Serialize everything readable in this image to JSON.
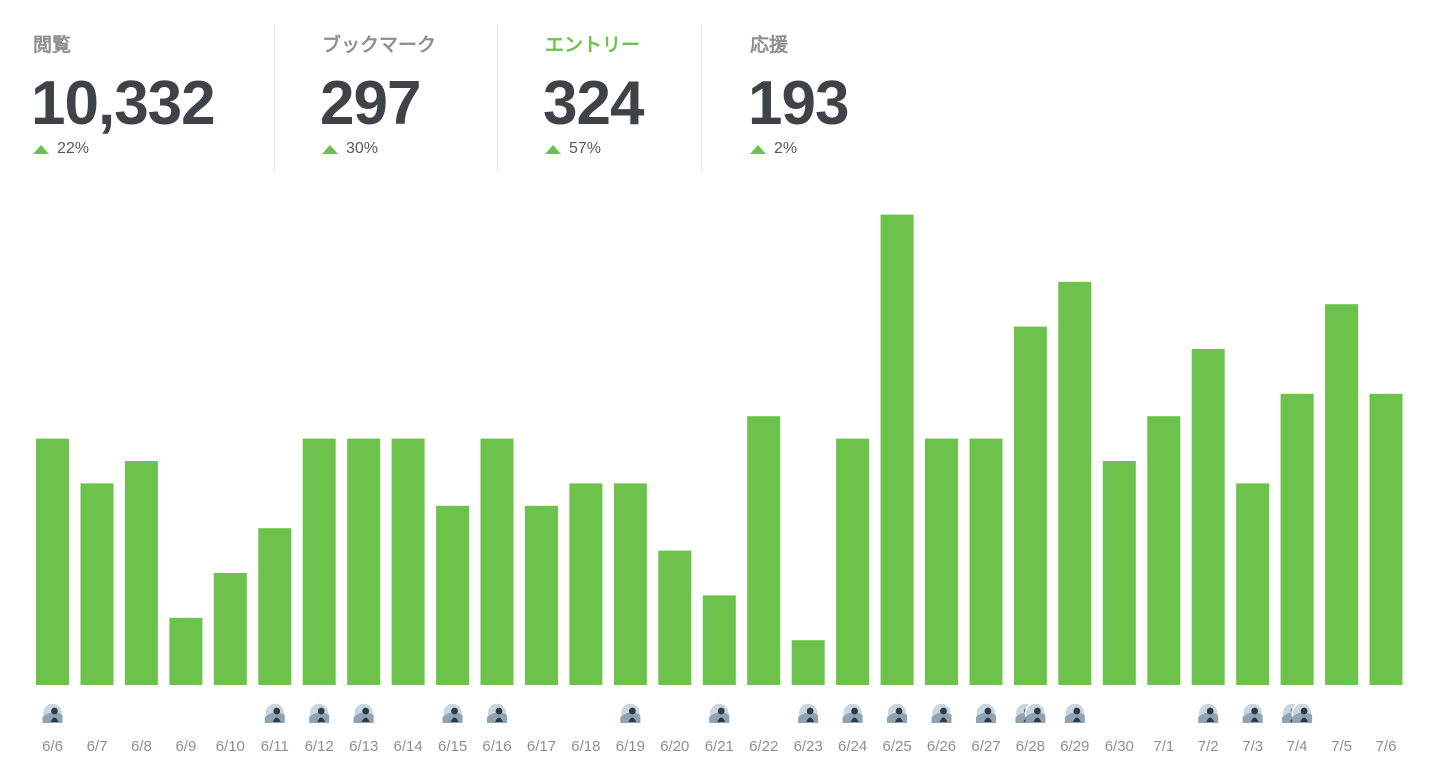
{
  "stats": [
    {
      "label": "閲覧",
      "value": "10,332",
      "change": "22%",
      "trend": "up",
      "active": false
    },
    {
      "label": "ブックマーク",
      "value": "297",
      "change": "30%",
      "trend": "up",
      "active": false
    },
    {
      "label": "エントリー",
      "value": "324",
      "change": "57%",
      "trend": "up",
      "active": true
    },
    {
      "label": "応援",
      "value": "193",
      "change": "2%",
      "trend": "up",
      "active": false
    }
  ],
  "colors": {
    "bar": "#6cc24a",
    "active_label": "#6cc24a",
    "trend_up": "#6cc24a"
  },
  "chart_data": {
    "type": "bar",
    "categories": [
      "6/6",
      "6/7",
      "6/8",
      "6/9",
      "6/10",
      "6/11",
      "6/12",
      "6/13",
      "6/14",
      "6/15",
      "6/16",
      "6/17",
      "6/18",
      "6/19",
      "6/20",
      "6/21",
      "6/22",
      "6/23",
      "6/24",
      "6/25",
      "6/26",
      "6/27",
      "6/28",
      "6/29",
      "6/30",
      "7/1",
      "7/2",
      "7/3",
      "7/4",
      "7/5",
      "7/6"
    ],
    "values": [
      11,
      9,
      10,
      3,
      5,
      7,
      11,
      11,
      11,
      8,
      11,
      8,
      9,
      9,
      6,
      4,
      12,
      2,
      11,
      21,
      11,
      11,
      16,
      18,
      10,
      12,
      15,
      9,
      13,
      17,
      13
    ],
    "avatars": [
      1,
      0,
      0,
      0,
      0,
      1,
      1,
      1,
      0,
      1,
      1,
      0,
      0,
      1,
      0,
      1,
      0,
      1,
      1,
      1,
      1,
      1,
      2,
      1,
      0,
      0,
      1,
      1,
      2,
      0,
      0
    ],
    "title": "",
    "xlabel": "",
    "ylabel": "",
    "grid": false,
    "legend": "none"
  }
}
